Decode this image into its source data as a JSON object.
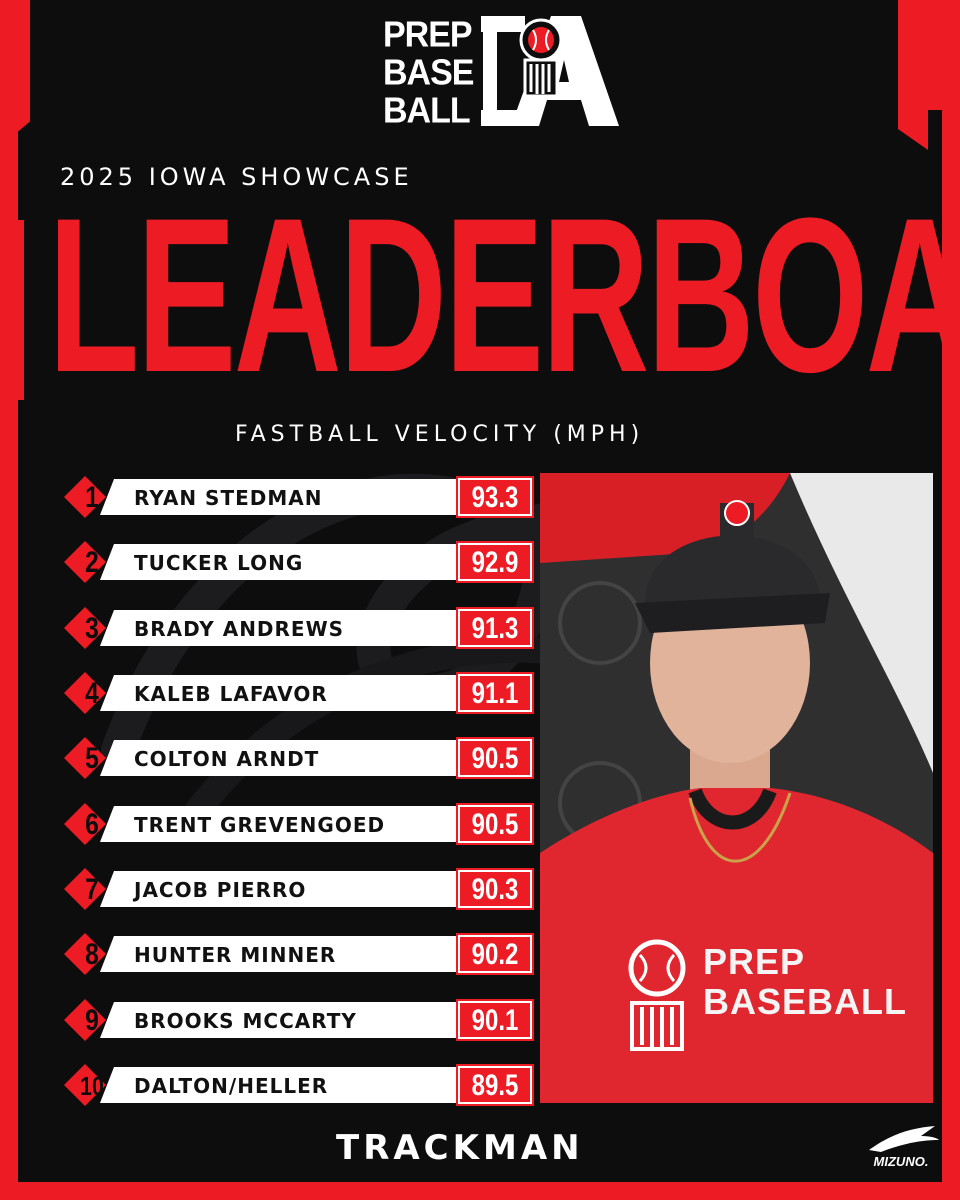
{
  "brand": {
    "logo_lines": [
      "PREP",
      "BASE",
      "BALL"
    ],
    "logo_state": "IA",
    "colors": {
      "red": "#ed1c24",
      "black": "#0d0d0e",
      "white": "#ffffff"
    }
  },
  "header": {
    "event_title": "2025 IOWA SHOWCASE",
    "main_title": "LEADERBOARD",
    "subtitle": "FASTBALL VELOCITY (MPH)"
  },
  "leaderboard": [
    {
      "rank": "1",
      "name": "RYAN STEDMAN",
      "velocity": "93.3"
    },
    {
      "rank": "2",
      "name": "TUCKER LONG",
      "velocity": "92.9"
    },
    {
      "rank": "3",
      "name": "BRADY ANDREWS",
      "velocity": "91.3"
    },
    {
      "rank": "4",
      "name": "KALEB LAFAVOR",
      "velocity": "91.1"
    },
    {
      "rank": "5",
      "name": "COLTON ARNDT",
      "velocity": "90.5"
    },
    {
      "rank": "6",
      "name": "TRENT GREVENGOED",
      "velocity": "90.5"
    },
    {
      "rank": "7",
      "name": "JACOB PIERRO",
      "velocity": "90.3"
    },
    {
      "rank": "8",
      "name": "HUNTER MINNER",
      "velocity": "90.2"
    },
    {
      "rank": "9",
      "name": "BROOKS MCCARTY",
      "velocity": "90.1"
    },
    {
      "rank": "10",
      "name": "DALTON/HELLER",
      "velocity": "89.5"
    }
  ],
  "photo": {
    "shirt_lines": [
      "PREP",
      "BASEBALL"
    ]
  },
  "footer": {
    "left_sponsor": "TRACKMAN",
    "right_sponsor": "MIZUNO."
  }
}
